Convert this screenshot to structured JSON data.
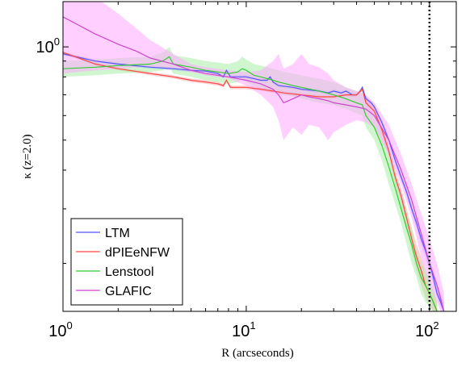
{
  "chart_data": {
    "type": "line",
    "xlabel": "R (arcseconds)",
    "ylabel": "κ (z=2.0)",
    "x_scale": "log",
    "y_scale": "log",
    "xlim": [
      1,
      140
    ],
    "ylim": [
      0.14,
      1.4
    ],
    "x_ticks": [
      {
        "value": 1,
        "base": "10",
        "exp": "0"
      },
      {
        "value": 10,
        "base": "10",
        "exp": "1"
      },
      {
        "value": 100,
        "base": "10",
        "exp": "2"
      }
    ],
    "y_ticks": [
      {
        "value": 1,
        "base": "10",
        "exp": "0"
      }
    ],
    "vline": {
      "x": 100,
      "style": "dotted",
      "color": "#000000"
    },
    "legend": {
      "placement": "bottom-left"
    },
    "series": [
      {
        "name": "LTM",
        "color": "#5555ff",
        "band_color": "#aaaaff",
        "x": [
          1,
          1.5,
          2,
          3,
          4,
          5,
          6,
          7,
          7.5,
          7.8,
          8.2,
          9,
          10,
          11,
          12,
          13,
          13.5,
          14,
          15,
          18,
          20,
          25,
          28,
          30,
          33,
          35,
          38,
          40,
          42,
          43,
          45,
          48,
          50,
          55,
          60,
          65,
          70,
          75,
          80,
          85,
          90,
          95,
          100,
          105,
          110,
          115,
          120
        ],
        "y": [
          0.95,
          0.9,
          0.88,
          0.86,
          0.85,
          0.84,
          0.835,
          0.82,
          0.8,
          0.84,
          0.8,
          0.8,
          0.8,
          0.79,
          0.78,
          0.78,
          0.8,
          0.77,
          0.75,
          0.74,
          0.73,
          0.72,
          0.71,
          0.72,
          0.71,
          0.72,
          0.7,
          0.7,
          0.72,
          0.74,
          0.68,
          0.66,
          0.64,
          0.57,
          0.5,
          0.43,
          0.38,
          0.34,
          0.3,
          0.27,
          0.24,
          0.22,
          0.2,
          0.18,
          0.16,
          0.15,
          0.14
        ],
        "lower": [
          0.94,
          0.89,
          0.87,
          0.85,
          0.84,
          0.83,
          0.825,
          0.81,
          0.79,
          0.83,
          0.79,
          0.79,
          0.79,
          0.78,
          0.77,
          0.77,
          0.79,
          0.76,
          0.74,
          0.73,
          0.72,
          0.71,
          0.7,
          0.71,
          0.7,
          0.71,
          0.69,
          0.69,
          0.71,
          0.73,
          0.67,
          0.65,
          0.63,
          0.56,
          0.49,
          0.42,
          0.37,
          0.33,
          0.29,
          0.26,
          0.23,
          0.21,
          0.19,
          0.17,
          0.155,
          0.145,
          0.135
        ],
        "upper": [
          0.96,
          0.91,
          0.89,
          0.87,
          0.86,
          0.85,
          0.845,
          0.83,
          0.81,
          0.85,
          0.81,
          0.81,
          0.81,
          0.8,
          0.79,
          0.79,
          0.81,
          0.78,
          0.76,
          0.75,
          0.74,
          0.73,
          0.72,
          0.73,
          0.72,
          0.73,
          0.71,
          0.71,
          0.73,
          0.75,
          0.69,
          0.67,
          0.65,
          0.58,
          0.51,
          0.44,
          0.39,
          0.35,
          0.31,
          0.28,
          0.25,
          0.23,
          0.21,
          0.19,
          0.17,
          0.16,
          0.15
        ]
      },
      {
        "name": "dPIEeNFW",
        "color": "#ff4444",
        "band_color": "#ffaaaa",
        "x": [
          1,
          1.5,
          2,
          3,
          4,
          5,
          6,
          7,
          7.5,
          7.8,
          8.2,
          9,
          10,
          12,
          14,
          16,
          20,
          25,
          30,
          35,
          40,
          42,
          43,
          45,
          50,
          55,
          60,
          65,
          70,
          75,
          80,
          85,
          90,
          95,
          100,
          105,
          110
        ],
        "y": [
          0.96,
          0.88,
          0.85,
          0.82,
          0.8,
          0.78,
          0.77,
          0.76,
          0.75,
          0.78,
          0.74,
          0.74,
          0.74,
          0.73,
          0.72,
          0.71,
          0.7,
          0.69,
          0.69,
          0.7,
          0.7,
          0.72,
          0.73,
          0.66,
          0.62,
          0.54,
          0.46,
          0.38,
          0.33,
          0.28,
          0.24,
          0.21,
          0.19,
          0.17,
          0.16,
          0.15,
          0.14
        ],
        "lower": [
          0.95,
          0.87,
          0.84,
          0.81,
          0.79,
          0.77,
          0.76,
          0.75,
          0.74,
          0.77,
          0.73,
          0.73,
          0.73,
          0.72,
          0.71,
          0.7,
          0.69,
          0.68,
          0.68,
          0.69,
          0.69,
          0.71,
          0.72,
          0.64,
          0.6,
          0.52,
          0.44,
          0.36,
          0.31,
          0.26,
          0.22,
          0.19,
          0.17,
          0.155,
          0.145,
          0.14,
          0.135
        ],
        "upper": [
          0.97,
          0.89,
          0.86,
          0.83,
          0.81,
          0.79,
          0.78,
          0.77,
          0.76,
          0.79,
          0.75,
          0.75,
          0.75,
          0.74,
          0.73,
          0.72,
          0.71,
          0.7,
          0.7,
          0.71,
          0.71,
          0.73,
          0.74,
          0.68,
          0.64,
          0.56,
          0.48,
          0.4,
          0.35,
          0.3,
          0.26,
          0.23,
          0.21,
          0.19,
          0.17,
          0.16,
          0.15
        ]
      },
      {
        "name": "Lenstool",
        "color": "#33cc33",
        "band_color": "#aaeeaa",
        "x": [
          1,
          1.5,
          2,
          3,
          3.5,
          3.8,
          4,
          5,
          6,
          7,
          8,
          9,
          9.5,
          10,
          11,
          12,
          13,
          14,
          15,
          18,
          20,
          25,
          30,
          35,
          40,
          43,
          45,
          50,
          55,
          60,
          65,
          70,
          75,
          80,
          85,
          90,
          95,
          100,
          105,
          110
        ],
        "y": [
          0.85,
          0.86,
          0.87,
          0.88,
          0.9,
          0.93,
          0.88,
          0.86,
          0.84,
          0.83,
          0.82,
          0.83,
          0.85,
          0.84,
          0.81,
          0.8,
          0.79,
          0.78,
          0.77,
          0.75,
          0.74,
          0.72,
          0.7,
          0.68,
          0.66,
          0.65,
          0.6,
          0.55,
          0.48,
          0.41,
          0.35,
          0.3,
          0.26,
          0.23,
          0.2,
          0.18,
          0.17,
          0.16,
          0.15,
          0.14
        ],
        "lower": [
          0.8,
          0.81,
          0.82,
          0.83,
          0.84,
          0.86,
          0.82,
          0.8,
          0.78,
          0.77,
          0.76,
          0.77,
          0.78,
          0.77,
          0.75,
          0.74,
          0.73,
          0.72,
          0.71,
          0.69,
          0.68,
          0.66,
          0.65,
          0.63,
          0.61,
          0.6,
          0.55,
          0.5,
          0.43,
          0.36,
          0.31,
          0.27,
          0.23,
          0.2,
          0.18,
          0.16,
          0.15,
          0.145,
          0.14,
          0.135
        ],
        "upper": [
          0.9,
          0.91,
          0.92,
          0.93,
          0.96,
          1.0,
          0.94,
          0.92,
          0.9,
          0.89,
          0.88,
          0.9,
          0.93,
          0.91,
          0.88,
          0.87,
          0.86,
          0.85,
          0.84,
          0.82,
          0.81,
          0.79,
          0.77,
          0.74,
          0.72,
          0.71,
          0.66,
          0.6,
          0.53,
          0.46,
          0.39,
          0.33,
          0.29,
          0.26,
          0.22,
          0.2,
          0.19,
          0.18,
          0.165,
          0.15
        ]
      },
      {
        "name": "GLAFIC",
        "color": "#cc44cc",
        "band_color": "#ffaaff",
        "x": [
          1,
          1.2,
          1.5,
          2,
          2.5,
          3,
          4,
          5,
          6,
          8,
          10,
          12,
          14,
          15,
          16,
          18,
          20,
          22,
          25,
          28,
          30,
          35,
          40,
          45,
          50,
          60,
          70,
          80,
          90,
          100,
          110,
          120
        ],
        "y": [
          1.25,
          1.18,
          1.1,
          1.02,
          0.97,
          0.92,
          0.88,
          0.84,
          0.82,
          0.8,
          0.78,
          0.76,
          0.73,
          0.7,
          0.66,
          0.68,
          0.7,
          0.69,
          0.68,
          0.67,
          0.66,
          0.65,
          0.64,
          0.63,
          0.6,
          0.5,
          0.4,
          0.32,
          0.25,
          0.2,
          0.17,
          0.14
        ],
        "lower": [
          0.82,
          0.83,
          0.84,
          0.85,
          0.86,
          0.86,
          0.85,
          0.83,
          0.81,
          0.79,
          0.75,
          0.7,
          0.64,
          0.58,
          0.5,
          0.55,
          0.52,
          0.56,
          0.55,
          0.5,
          0.53,
          0.56,
          0.58,
          0.57,
          0.55,
          0.45,
          0.36,
          0.28,
          0.21,
          0.17,
          0.15,
          0.13
        ],
        "upper": [
          1.75,
          1.62,
          1.45,
          1.28,
          1.15,
          1.05,
          0.95,
          0.88,
          0.86,
          0.84,
          0.83,
          0.84,
          0.9,
          0.95,
          0.85,
          0.88,
          0.95,
          0.88,
          0.86,
          0.82,
          0.78,
          0.74,
          0.72,
          0.7,
          0.66,
          0.56,
          0.45,
          0.36,
          0.29,
          0.24,
          0.2,
          0.16
        ]
      }
    ]
  }
}
